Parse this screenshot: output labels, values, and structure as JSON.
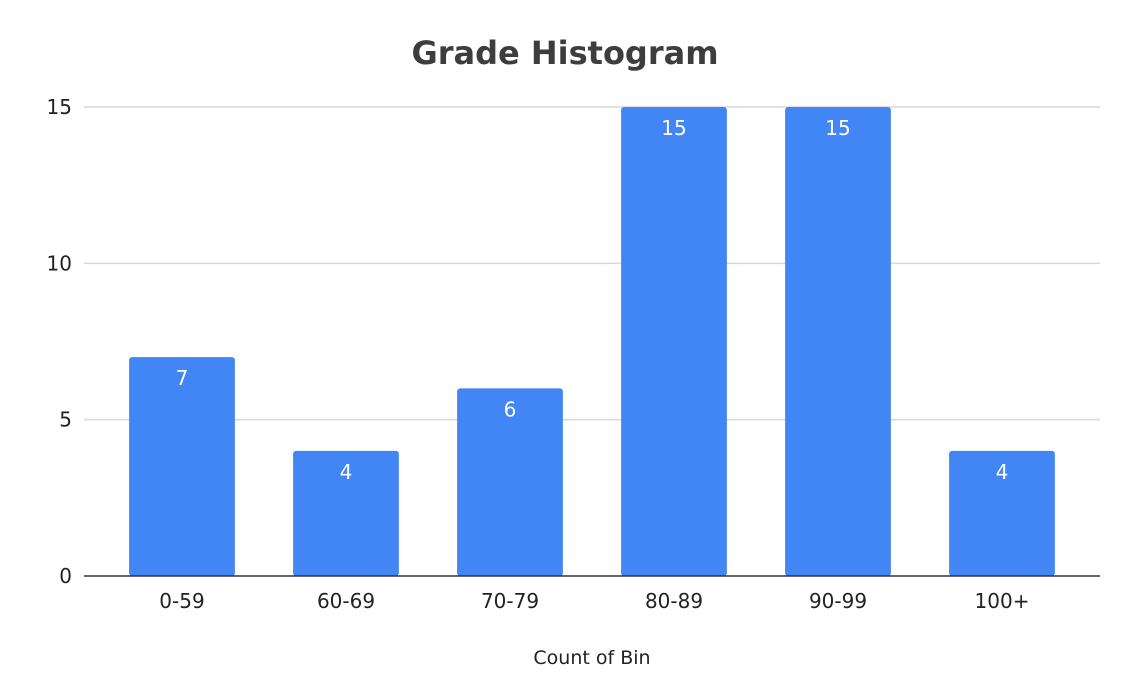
{
  "chart_data": {
    "type": "bar",
    "title": "Grade Histogram",
    "xlabel": "Count of Bin",
    "ylabel": "",
    "categories": [
      "0-59",
      "60-69",
      "70-79",
      "80-89",
      "90-99",
      "100+"
    ],
    "values": [
      7,
      4,
      6,
      15,
      15,
      4
    ],
    "ylim": [
      0,
      15
    ],
    "yticks": [
      "0",
      "5",
      "10",
      "15"
    ],
    "grid": true,
    "legend": "none",
    "data_labels": true,
    "colors": {
      "bar": "#4285f4",
      "grid": "#d9d9d9",
      "axis": "#333333",
      "title": "#3d3d3d",
      "text": "#222222",
      "bar_label": "#ffffff"
    }
  }
}
